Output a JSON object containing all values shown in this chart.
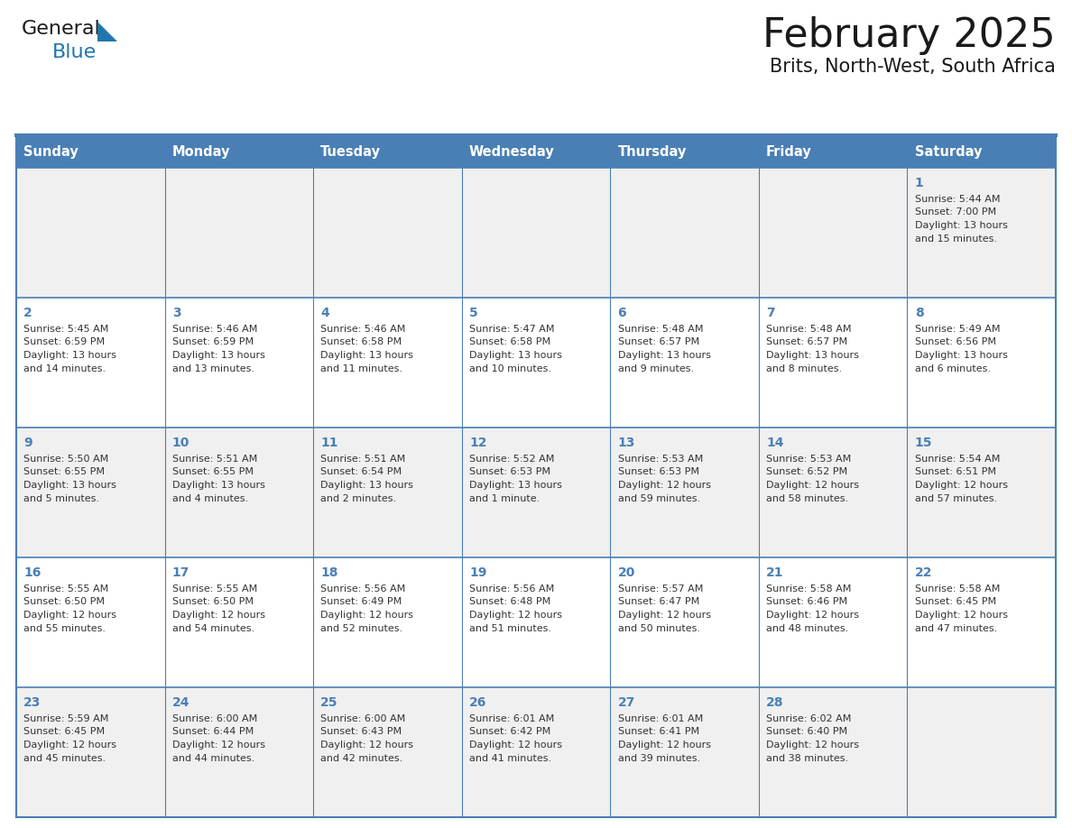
{
  "title": "February 2025",
  "subtitle": "Brits, North-West, South Africa",
  "days_of_week": [
    "Sunday",
    "Monday",
    "Tuesday",
    "Wednesday",
    "Thursday",
    "Friday",
    "Saturday"
  ],
  "header_bg": "#4a7fb5",
  "header_text": "#ffffff",
  "cell_bg_odd": "#f0f0f0",
  "cell_bg_even": "#ffffff",
  "border_color": "#4a7fb5",
  "title_color": "#1a1a1a",
  "subtitle_color": "#1a1a1a",
  "day_num_color": "#4a7fb5",
  "cell_text_color": "#333333",
  "logo_dark": "#1a1a1a",
  "logo_blue": "#2176ae",
  "calendar_data": [
    [
      null,
      null,
      null,
      null,
      null,
      null,
      {
        "day": "1",
        "sunrise": "5:44 AM",
        "sunset": "7:00 PM",
        "dl1": "Daylight: 13 hours",
        "dl2": "and 15 minutes."
      }
    ],
    [
      {
        "day": "2",
        "sunrise": "5:45 AM",
        "sunset": "6:59 PM",
        "dl1": "Daylight: 13 hours",
        "dl2": "and 14 minutes."
      },
      {
        "day": "3",
        "sunrise": "5:46 AM",
        "sunset": "6:59 PM",
        "dl1": "Daylight: 13 hours",
        "dl2": "and 13 minutes."
      },
      {
        "day": "4",
        "sunrise": "5:46 AM",
        "sunset": "6:58 PM",
        "dl1": "Daylight: 13 hours",
        "dl2": "and 11 minutes."
      },
      {
        "day": "5",
        "sunrise": "5:47 AM",
        "sunset": "6:58 PM",
        "dl1": "Daylight: 13 hours",
        "dl2": "and 10 minutes."
      },
      {
        "day": "6",
        "sunrise": "5:48 AM",
        "sunset": "6:57 PM",
        "dl1": "Daylight: 13 hours",
        "dl2": "and 9 minutes."
      },
      {
        "day": "7",
        "sunrise": "5:48 AM",
        "sunset": "6:57 PM",
        "dl1": "Daylight: 13 hours",
        "dl2": "and 8 minutes."
      },
      {
        "day": "8",
        "sunrise": "5:49 AM",
        "sunset": "6:56 PM",
        "dl1": "Daylight: 13 hours",
        "dl2": "and 6 minutes."
      }
    ],
    [
      {
        "day": "9",
        "sunrise": "5:50 AM",
        "sunset": "6:55 PM",
        "dl1": "Daylight: 13 hours",
        "dl2": "and 5 minutes."
      },
      {
        "day": "10",
        "sunrise": "5:51 AM",
        "sunset": "6:55 PM",
        "dl1": "Daylight: 13 hours",
        "dl2": "and 4 minutes."
      },
      {
        "day": "11",
        "sunrise": "5:51 AM",
        "sunset": "6:54 PM",
        "dl1": "Daylight: 13 hours",
        "dl2": "and 2 minutes."
      },
      {
        "day": "12",
        "sunrise": "5:52 AM",
        "sunset": "6:53 PM",
        "dl1": "Daylight: 13 hours",
        "dl2": "and 1 minute."
      },
      {
        "day": "13",
        "sunrise": "5:53 AM",
        "sunset": "6:53 PM",
        "dl1": "Daylight: 12 hours",
        "dl2": "and 59 minutes."
      },
      {
        "day": "14",
        "sunrise": "5:53 AM",
        "sunset": "6:52 PM",
        "dl1": "Daylight: 12 hours",
        "dl2": "and 58 minutes."
      },
      {
        "day": "15",
        "sunrise": "5:54 AM",
        "sunset": "6:51 PM",
        "dl1": "Daylight: 12 hours",
        "dl2": "and 57 minutes."
      }
    ],
    [
      {
        "day": "16",
        "sunrise": "5:55 AM",
        "sunset": "6:50 PM",
        "dl1": "Daylight: 12 hours",
        "dl2": "and 55 minutes."
      },
      {
        "day": "17",
        "sunrise": "5:55 AM",
        "sunset": "6:50 PM",
        "dl1": "Daylight: 12 hours",
        "dl2": "and 54 minutes."
      },
      {
        "day": "18",
        "sunrise": "5:56 AM",
        "sunset": "6:49 PM",
        "dl1": "Daylight: 12 hours",
        "dl2": "and 52 minutes."
      },
      {
        "day": "19",
        "sunrise": "5:56 AM",
        "sunset": "6:48 PM",
        "dl1": "Daylight: 12 hours",
        "dl2": "and 51 minutes."
      },
      {
        "day": "20",
        "sunrise": "5:57 AM",
        "sunset": "6:47 PM",
        "dl1": "Daylight: 12 hours",
        "dl2": "and 50 minutes."
      },
      {
        "day": "21",
        "sunrise": "5:58 AM",
        "sunset": "6:46 PM",
        "dl1": "Daylight: 12 hours",
        "dl2": "and 48 minutes."
      },
      {
        "day": "22",
        "sunrise": "5:58 AM",
        "sunset": "6:45 PM",
        "dl1": "Daylight: 12 hours",
        "dl2": "and 47 minutes."
      }
    ],
    [
      {
        "day": "23",
        "sunrise": "5:59 AM",
        "sunset": "6:45 PM",
        "dl1": "Daylight: 12 hours",
        "dl2": "and 45 minutes."
      },
      {
        "day": "24",
        "sunrise": "6:00 AM",
        "sunset": "6:44 PM",
        "dl1": "Daylight: 12 hours",
        "dl2": "and 44 minutes."
      },
      {
        "day": "25",
        "sunrise": "6:00 AM",
        "sunset": "6:43 PM",
        "dl1": "Daylight: 12 hours",
        "dl2": "and 42 minutes."
      },
      {
        "day": "26",
        "sunrise": "6:01 AM",
        "sunset": "6:42 PM",
        "dl1": "Daylight: 12 hours",
        "dl2": "and 41 minutes."
      },
      {
        "day": "27",
        "sunrise": "6:01 AM",
        "sunset": "6:41 PM",
        "dl1": "Daylight: 12 hours",
        "dl2": "and 39 minutes."
      },
      {
        "day": "28",
        "sunrise": "6:02 AM",
        "sunset": "6:40 PM",
        "dl1": "Daylight: 12 hours",
        "dl2": "and 38 minutes."
      },
      null
    ]
  ]
}
